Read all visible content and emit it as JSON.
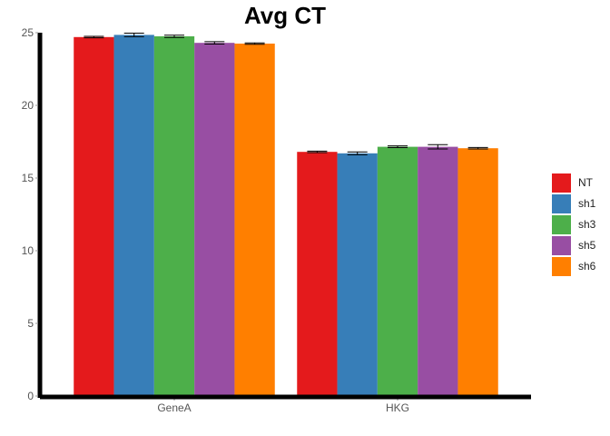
{
  "chart_data": {
    "type": "bar",
    "title": "Avg CT",
    "xlabel": "",
    "ylabel": "",
    "categories": [
      "GeneA",
      "HKG"
    ],
    "ylim": [
      0,
      25
    ],
    "yticks": [
      0,
      5,
      10,
      15,
      20,
      25
    ],
    "grid": false,
    "legend_position": "right",
    "series": [
      {
        "name": "NT",
        "color": "#e41a1c",
        "values": [
          24.7,
          16.8
        ],
        "errors": [
          0.05,
          0.05
        ]
      },
      {
        "name": "sh1",
        "color": "#377eb8",
        "values": [
          24.85,
          16.7
        ],
        "errors": [
          0.12,
          0.1
        ]
      },
      {
        "name": "sh3",
        "color": "#4daf4a",
        "values": [
          24.75,
          17.15
        ],
        "errors": [
          0.08,
          0.06
        ]
      },
      {
        "name": "sh5",
        "color": "#984ea3",
        "values": [
          24.3,
          17.15
        ],
        "errors": [
          0.08,
          0.15
        ]
      },
      {
        "name": "sh6",
        "color": "#ff7f00",
        "values": [
          24.25,
          17.05
        ],
        "errors": [
          0.05,
          0.05
        ]
      }
    ]
  }
}
